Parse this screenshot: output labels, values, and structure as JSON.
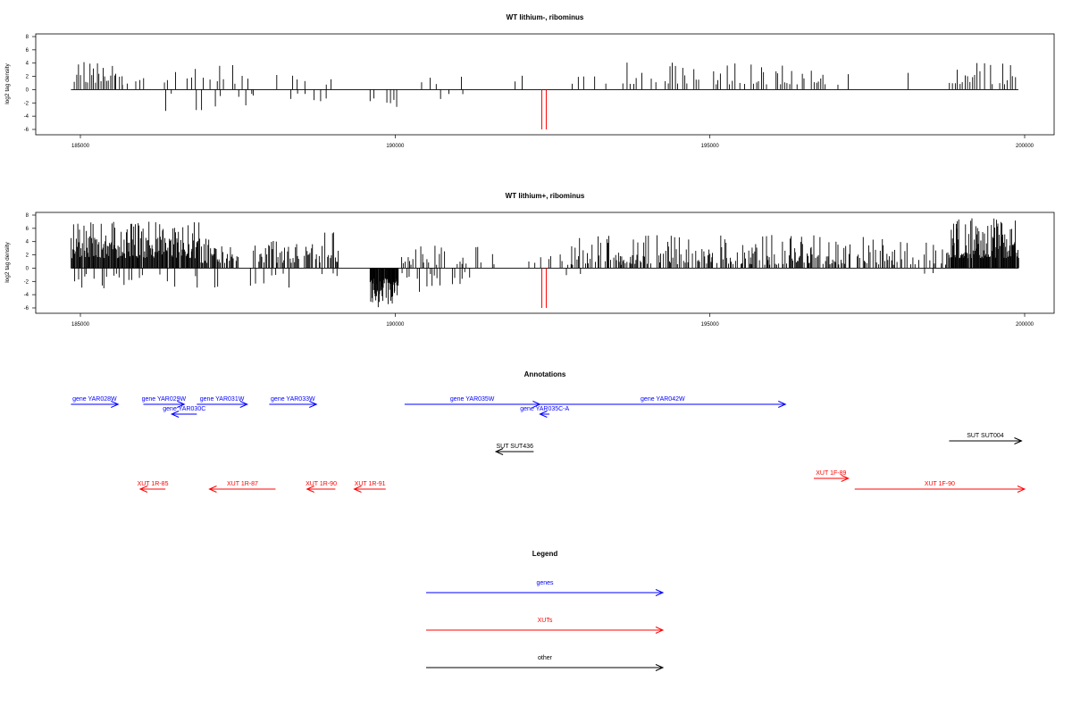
{
  "colors": {
    "gene": "#0000ff",
    "xut": "#ff0000",
    "other": "#000000",
    "bar": "#000000",
    "highlight": "#ff0000"
  },
  "chart_data": [
    {
      "type": "bar",
      "title": "WT lithium-, ribominus",
      "xlabel": "",
      "ylabel": "log2 tag density",
      "xlim": [
        184850,
        199900
      ],
      "ylim": [
        -6,
        8
      ],
      "xticks": [
        185000,
        190000,
        195000,
        200000
      ],
      "yticks": [
        -6,
        -4,
        -2,
        0,
        2,
        4,
        6,
        8
      ],
      "highlight_x": [
        192330,
        192400
      ],
      "segments": [
        {
          "from": 184900,
          "to": 185650,
          "step": 30,
          "min": 1,
          "max": 4.6,
          "fill": 0.85
        },
        {
          "from": 185650,
          "to": 186100,
          "step": 70,
          "min": 0.6,
          "max": 2.2,
          "fill": 0.6
        },
        {
          "from": 186200,
          "to": 186800,
          "step": 60,
          "min": 1,
          "max": 4,
          "fill": 0.6
        },
        {
          "from": 186900,
          "to": 187700,
          "step": 50,
          "min": 0.8,
          "max": 4,
          "fill": 0.6
        },
        {
          "from": 187700,
          "to": 188100,
          "step": 80,
          "min": 0.6,
          "max": 3,
          "fill": 0.5
        },
        {
          "from": 188300,
          "to": 189000,
          "step": 60,
          "min": 0.6,
          "max": 3,
          "fill": 0.5
        },
        {
          "from": 190400,
          "to": 191100,
          "step": 120,
          "min": 0.6,
          "max": 2,
          "fill": 0.4
        },
        {
          "from": 191800,
          "to": 192000,
          "step": 100,
          "min": 1.2,
          "max": 2.6,
          "fill": 0.9
        },
        {
          "from": 192800,
          "to": 193500,
          "step": 90,
          "min": 0.6,
          "max": 3.4,
          "fill": 0.5
        },
        {
          "from": 193600,
          "to": 196800,
          "step": 38,
          "min": 0.8,
          "max": 4.1,
          "fill": 0.55
        },
        {
          "from": 196800,
          "to": 198200,
          "step": 160,
          "min": 0.6,
          "max": 2.8,
          "fill": 0.35
        },
        {
          "from": 198800,
          "to": 199850,
          "step": 40,
          "min": 0.8,
          "max": 4.1,
          "fill": 0.7
        }
      ],
      "neg_segments": [
        {
          "from": 186200,
          "to": 186800,
          "step": 120,
          "min": 0.6,
          "max": 3.5,
          "fill": 0.6
        },
        {
          "from": 186900,
          "to": 187700,
          "step": 100,
          "min": 0.8,
          "max": 3.4,
          "fill": 0.6
        },
        {
          "from": 187700,
          "to": 188100,
          "step": 110,
          "min": 0.6,
          "max": 2.6,
          "fill": 0.5
        },
        {
          "from": 188300,
          "to": 189000,
          "step": 120,
          "min": 0.6,
          "max": 2.4,
          "fill": 0.5
        },
        {
          "from": 189600,
          "to": 190050,
          "step": 60,
          "min": 1,
          "max": 2.8,
          "fill": 0.6
        },
        {
          "from": 190700,
          "to": 191100,
          "step": 120,
          "min": 0.6,
          "max": 2,
          "fill": 0.5
        }
      ]
    },
    {
      "type": "bar",
      "title": "WT lithium+, ribominus",
      "xlabel": "",
      "ylabel": "log2 tag density",
      "xlim": [
        184850,
        199900
      ],
      "ylim": [
        -6,
        8
      ],
      "xticks": [
        185000,
        190000,
        195000,
        200000
      ],
      "yticks": [
        -6,
        -4,
        -2,
        0,
        2,
        4,
        6,
        8
      ],
      "highlight_x": [
        192330,
        192400
      ],
      "segments": [
        {
          "from": 184850,
          "to": 186900,
          "step": 12,
          "min": 1.5,
          "max": 7,
          "fill": 0.95
        },
        {
          "from": 186900,
          "to": 187500,
          "step": 15,
          "min": 0.8,
          "max": 4.5,
          "fill": 0.7
        },
        {
          "from": 187700,
          "to": 188400,
          "step": 15,
          "min": 0.8,
          "max": 4.6,
          "fill": 0.6
        },
        {
          "from": 188400,
          "to": 189100,
          "step": 15,
          "min": 0.8,
          "max": 5.8,
          "fill": 0.6
        },
        {
          "from": 190100,
          "to": 191300,
          "step": 25,
          "min": 0.5,
          "max": 3.5,
          "fill": 0.5
        },
        {
          "from": 191300,
          "to": 192800,
          "step": 45,
          "min": 0.5,
          "max": 2.5,
          "fill": 0.4
        },
        {
          "from": 192800,
          "to": 197500,
          "step": 14,
          "min": 0.5,
          "max": 5,
          "fill": 0.55
        },
        {
          "from": 197500,
          "to": 198800,
          "step": 18,
          "min": 0.5,
          "max": 4.5,
          "fill": 0.5
        },
        {
          "from": 198800,
          "to": 199900,
          "step": 10,
          "min": 1.5,
          "max": 7.6,
          "fill": 0.95
        }
      ],
      "neg_segments": [
        {
          "from": 184850,
          "to": 187200,
          "step": 40,
          "min": 0.8,
          "max": 3.2,
          "fill": 0.35
        },
        {
          "from": 187700,
          "to": 188400,
          "step": 40,
          "min": 0.8,
          "max": 3.5,
          "fill": 0.4
        },
        {
          "from": 188400,
          "to": 189100,
          "step": 60,
          "min": 0.6,
          "max": 2.5,
          "fill": 0.4
        },
        {
          "from": 189600,
          "to": 190050,
          "step": 8,
          "min": 1.5,
          "max": 6,
          "fill": 0.95
        },
        {
          "from": 190100,
          "to": 191300,
          "step": 40,
          "min": 0.6,
          "max": 4,
          "fill": 0.45
        },
        {
          "from": 192600,
          "to": 193000,
          "step": 100,
          "min": 0.6,
          "max": 2,
          "fill": 0.5
        },
        {
          "from": 197900,
          "to": 198700,
          "step": 100,
          "min": 0.6,
          "max": 2.4,
          "fill": 0.4
        }
      ]
    }
  ],
  "annotations": {
    "title": "Annotations",
    "features": [
      {
        "label": "gene YAR028W",
        "start": 184850,
        "end": 185600,
        "strand": "+",
        "kind": "gene",
        "row": 0
      },
      {
        "label": "gene YAR029W",
        "start": 186000,
        "end": 186650,
        "strand": "+",
        "kind": "gene",
        "row": 0
      },
      {
        "label": "gene YAR030C",
        "start": 186450,
        "end": 186850,
        "strand": "-",
        "kind": "gene",
        "row": 1
      },
      {
        "label": "gene YAR031W",
        "start": 186850,
        "end": 187650,
        "strand": "+",
        "kind": "gene",
        "row": 0
      },
      {
        "label": "gene YAR033W",
        "start": 188000,
        "end": 188750,
        "strand": "+",
        "kind": "gene",
        "row": 0
      },
      {
        "label": "gene YAR035W",
        "start": 190150,
        "end": 192300,
        "strand": "+",
        "kind": "gene",
        "row": 0
      },
      {
        "label": "gene YAR035C-A",
        "start": 192300,
        "end": 192450,
        "strand": "-",
        "kind": "gene",
        "row": 1
      },
      {
        "label": "gene YAR042W",
        "start": 192300,
        "end": 196200,
        "strand": "+",
        "kind": "gene",
        "row": 0
      },
      {
        "label": "SUT SUT436",
        "start": 191600,
        "end": 192200,
        "strand": "-",
        "kind": "other",
        "row": 2
      },
      {
        "label": "SUT SUT004",
        "start": 198800,
        "end": 199950,
        "strand": "+",
        "kind": "other",
        "row": 3
      },
      {
        "label": "XUT 1R-85",
        "start": 185950,
        "end": 186350,
        "strand": "-",
        "kind": "xut",
        "row": 4
      },
      {
        "label": "XUT 1R-87",
        "start": 187050,
        "end": 188100,
        "strand": "-",
        "kind": "xut",
        "row": 4
      },
      {
        "label": "XUT 1R-90",
        "start": 188600,
        "end": 189050,
        "strand": "-",
        "kind": "xut",
        "row": 4
      },
      {
        "label": "XUT 1R-91",
        "start": 189350,
        "end": 189850,
        "strand": "-",
        "kind": "xut",
        "row": 4
      },
      {
        "label": "XUT 1F-89",
        "start": 196650,
        "end": 197200,
        "strand": "+",
        "kind": "xut",
        "row": 5
      },
      {
        "label": "XUT 1F-90",
        "start": 197300,
        "end": 200000,
        "strand": "+",
        "kind": "xut",
        "row": 4
      }
    ]
  },
  "legend": {
    "title": "Legend",
    "items": [
      {
        "label": "genes",
        "kind": "gene"
      },
      {
        "label": "XUTs",
        "kind": "xut"
      },
      {
        "label": "other",
        "kind": "other"
      }
    ]
  }
}
